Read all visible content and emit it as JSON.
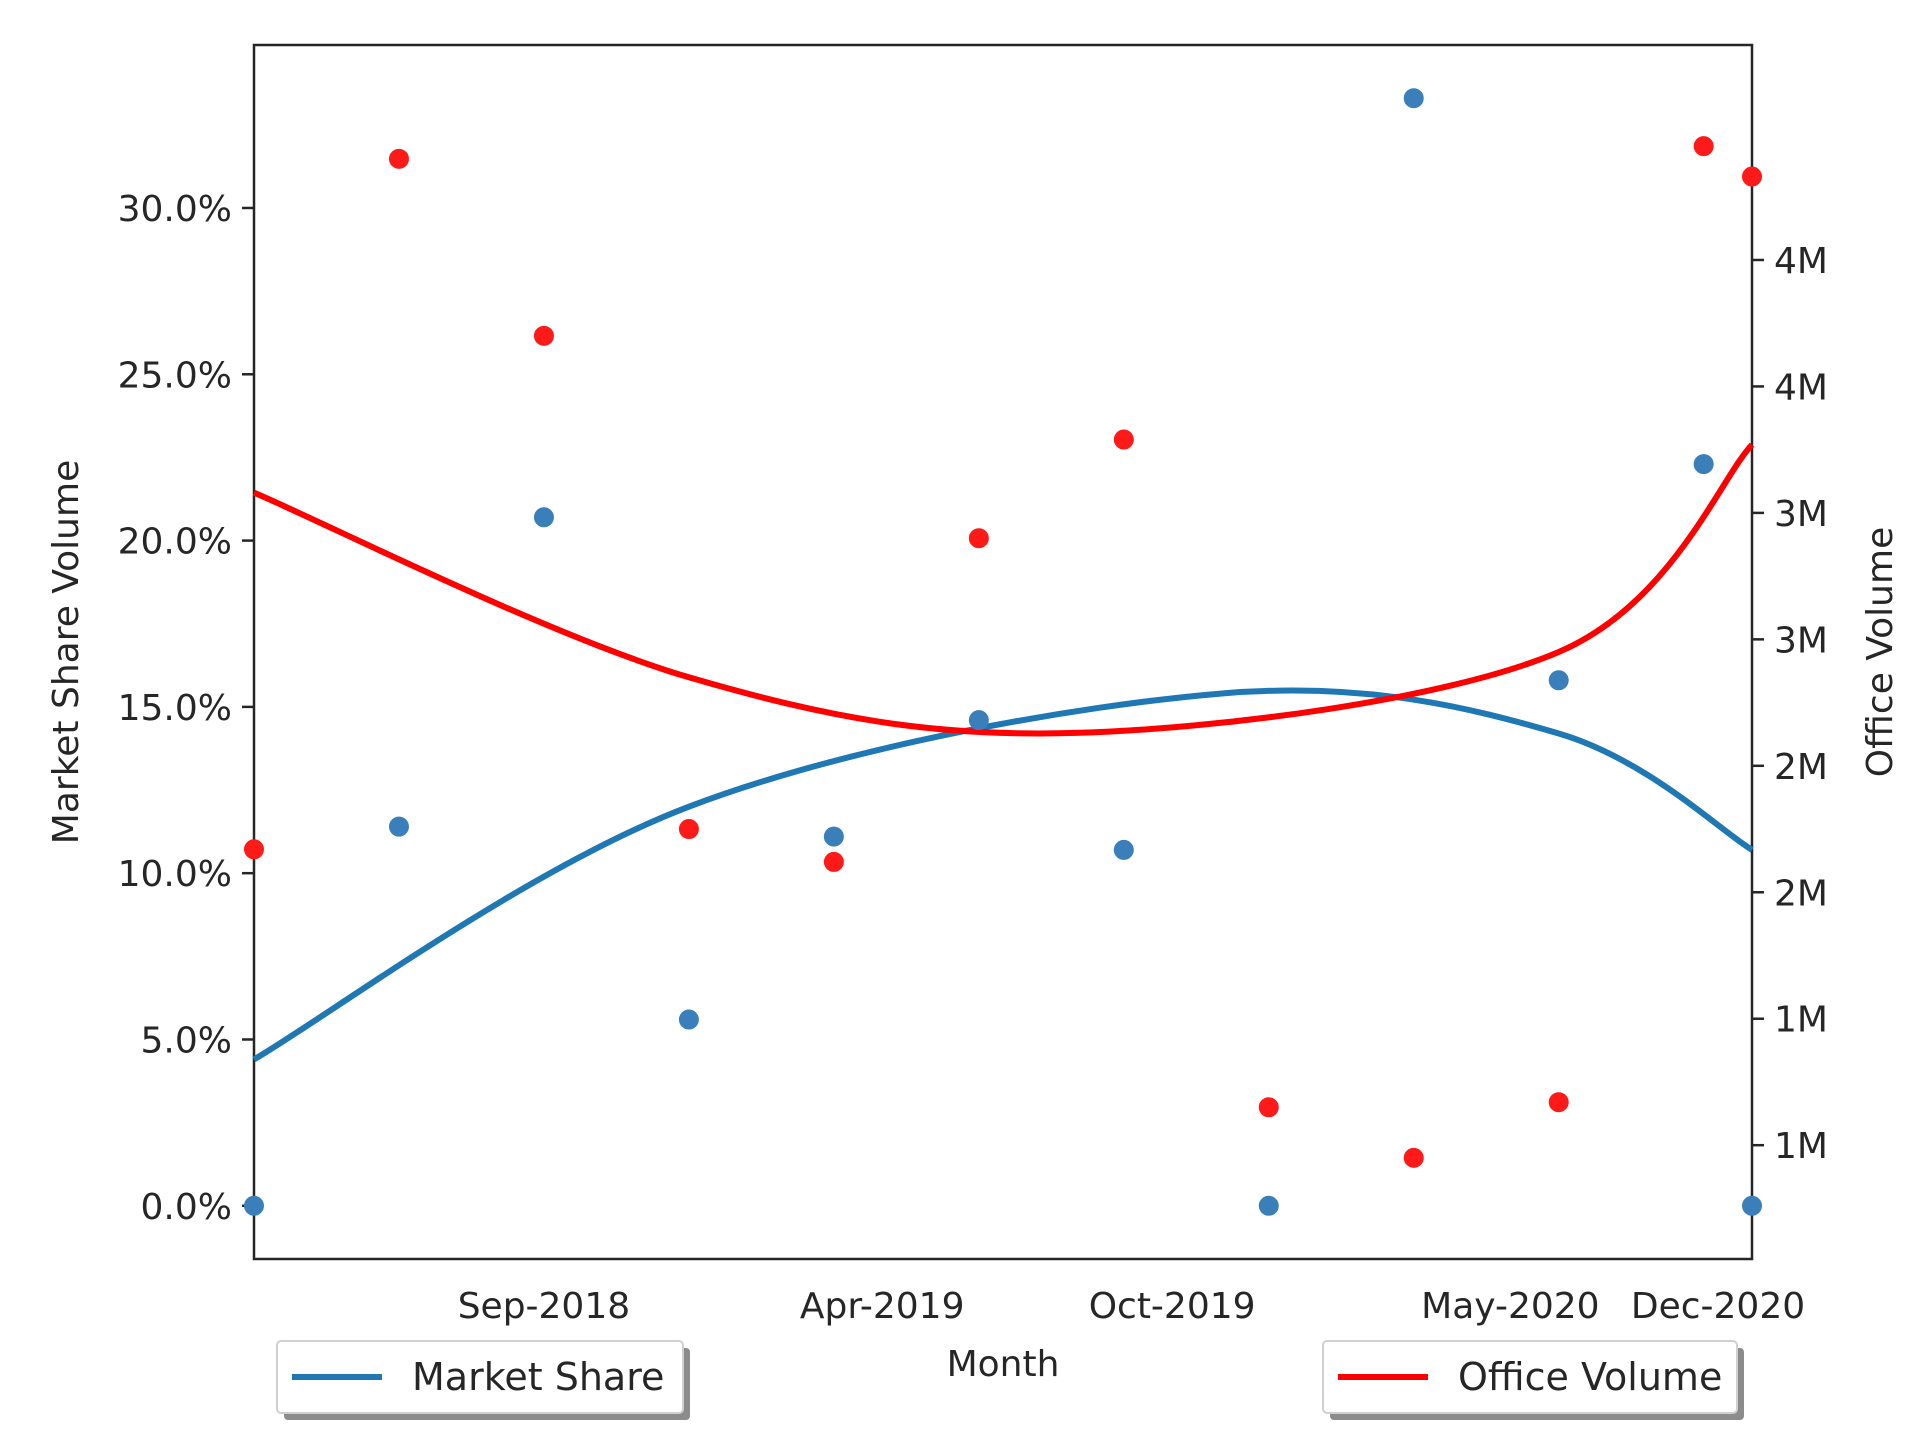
{
  "chart_data": {
    "type": "scatter",
    "xlabel": "Month",
    "ylabel": "Market Share Volume",
    "y2label": "Office Volume",
    "x_ticks": [
      "Sep-2018",
      "Apr-2019",
      "Oct-2019",
      "May-2020",
      "Dec-2020"
    ],
    "y_ticks": [
      "0.0%",
      "5.0%",
      "10.0%",
      "15.0%",
      "20.0%",
      "25.0%",
      "30.0%"
    ],
    "y2_ticks": [
      "1M",
      "1M",
      "2M",
      "2M",
      "3M",
      "3M",
      "4M",
      "4M"
    ],
    "x_range": [
      "2018-06",
      "2021-01"
    ],
    "ylim": [
      -1.6,
      34.9
    ],
    "y2lim": [
      0.05,
      4.85
    ],
    "grid": false,
    "legend_left_position": "bottom-left",
    "legend_right_position": "bottom-right",
    "x": [
      "2018-06",
      "2018-09",
      "2018-12",
      "2019-03",
      "2019-06",
      "2019-09",
      "2019-12",
      "2020-03",
      "2020-06",
      "2020-09",
      "2020-12",
      "2021-01"
    ],
    "series": [
      {
        "name": "Market Share",
        "axis": "left",
        "color": "#1f77b4",
        "marker_color": "#3a7fba",
        "points": [
          {
            "x": "2018-06",
            "y": 0.0
          },
          {
            "x": "2018-09",
            "y": 11.4
          },
          {
            "x": "2018-12",
            "y": 20.7
          },
          {
            "x": "2019-03",
            "y": 5.6
          },
          {
            "x": "2019-06",
            "y": 11.1
          },
          {
            "x": "2019-09",
            "y": 14.6
          },
          {
            "x": "2019-12",
            "y": 10.7
          },
          {
            "x": "2020-03",
            "y": 0.0
          },
          {
            "x": "2020-06",
            "y": 33.3
          },
          {
            "x": "2020-09",
            "y": 15.8
          },
          {
            "x": "2020-12",
            "y": 22.3
          },
          {
            "x": "2021-01",
            "y": 0.0
          }
        ],
        "fit_curve": [
          {
            "x": "2018-06",
            "y": 4.4
          },
          {
            "x": "2019-03",
            "y": 12.0
          },
          {
            "x": "2020-02",
            "y": 15.4
          },
          {
            "x": "2020-09",
            "y": 14.2
          },
          {
            "x": "2021-01",
            "y": 10.7
          }
        ]
      },
      {
        "name": "Office Volume",
        "axis": "right",
        "color": "#ff0000",
        "marker_color": "#ff1a1a",
        "points": [
          {
            "x": "2018-06",
            "y": 1.67
          },
          {
            "x": "2018-09",
            "y": 4.4
          },
          {
            "x": "2018-12",
            "y": 3.7
          },
          {
            "x": "2019-03",
            "y": 1.75
          },
          {
            "x": "2019-06",
            "y": 1.62
          },
          {
            "x": "2019-09",
            "y": 2.9
          },
          {
            "x": "2019-12",
            "y": 3.29
          },
          {
            "x": "2020-03",
            "y": 0.65
          },
          {
            "x": "2020-06",
            "y": 0.45
          },
          {
            "x": "2020-09",
            "y": 0.67
          },
          {
            "x": "2020-12",
            "y": 4.45
          },
          {
            "x": "2021-01",
            "y": 4.33
          }
        ],
        "fit_curve": [
          {
            "x": "2018-06",
            "y": 3.08
          },
          {
            "x": "2019-03",
            "y": 2.35
          },
          {
            "x": "2019-11",
            "y": 2.13
          },
          {
            "x": "2020-09",
            "y": 2.45
          },
          {
            "x": "2021-01",
            "y": 3.27
          }
        ]
      }
    ]
  }
}
